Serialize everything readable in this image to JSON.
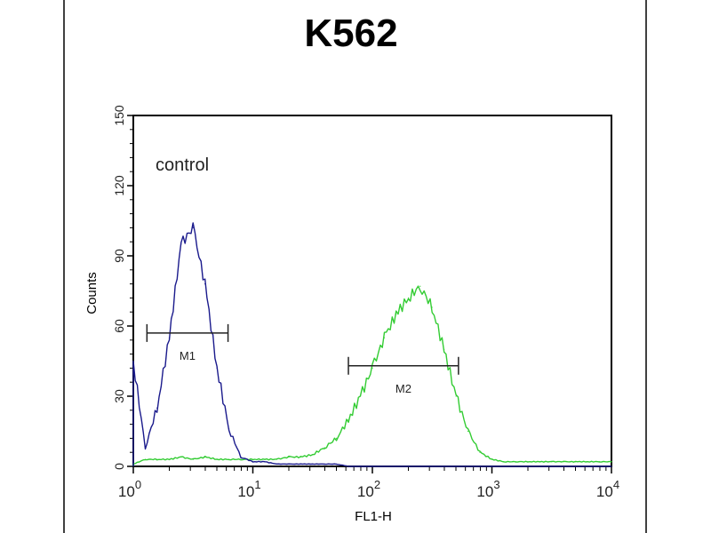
{
  "chart_data": {
    "type": "line",
    "title": "K562",
    "xlabel": "FL1-H",
    "ylabel": "Counts",
    "x_scale": "log",
    "xlim": [
      1,
      10000
    ],
    "ylim": [
      0,
      150
    ],
    "x_ticks": [
      {
        "base": "10",
        "exp": "0",
        "value": 1
      },
      {
        "base": "10",
        "exp": "1",
        "value": 10
      },
      {
        "base": "10",
        "exp": "2",
        "value": 100
      },
      {
        "base": "10",
        "exp": "3",
        "value": 1000
      },
      {
        "base": "10",
        "exp": "4",
        "value": 10000
      }
    ],
    "y_ticks": [
      "0",
      "30",
      "60",
      "90",
      "120",
      "150"
    ],
    "grid": false,
    "annotation": "control",
    "x": [
      1,
      1.26,
      1.58,
      2,
      2.51,
      3.16,
      3.98,
      5.01,
      6.31,
      7.94,
      10,
      12.6,
      15.8,
      20,
      25.1,
      31.6,
      39.8,
      50.1,
      63.1,
      79.4,
      100,
      126,
      158,
      200,
      251,
      316,
      398,
      501,
      631,
      794,
      1000,
      1259,
      1585,
      1995,
      2512,
      3162,
      3981,
      5012,
      6310,
      7943,
      10000
    ],
    "series": [
      {
        "color": "#1a1a8c",
        "values": [
          45,
          8,
          25,
          55,
          95,
          102,
          78,
          42,
          16,
          4,
          2,
          2,
          1,
          1,
          1,
          1,
          1,
          1,
          0,
          0,
          0,
          0,
          0,
          0,
          0,
          0,
          0,
          0,
          0,
          0,
          0,
          0,
          0,
          0,
          0,
          0,
          0,
          0,
          0,
          0,
          0
        ]
      },
      {
        "color": "#33cc33",
        "values": [
          1,
          3,
          3,
          3,
          4,
          3,
          4,
          3,
          3,
          3,
          3,
          3,
          3,
          4,
          4,
          5,
          8,
          12,
          20,
          30,
          42,
          55,
          65,
          72,
          77,
          68,
          50,
          30,
          15,
          6,
          3,
          2,
          2,
          2,
          2,
          2,
          2,
          2,
          2,
          2,
          2
        ]
      }
    ],
    "markers": [
      {
        "label": "M1",
        "range": [
          1.3,
          6.2
        ],
        "level": 57
      },
      {
        "label": "M2",
        "range": [
          63,
          525
        ],
        "level": 43
      }
    ]
  }
}
